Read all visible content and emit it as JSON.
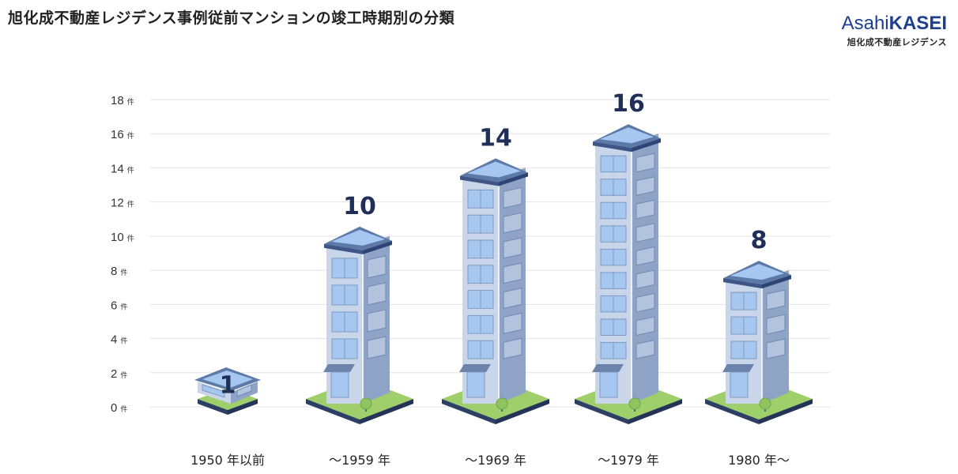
{
  "title": "旭化成不動産レジデンス事例従前マンションの竣工時期別の分類",
  "logo": {
    "brand_asahi": "Asahi",
    "brand_kasei": "KASEI",
    "subtitle": "旭化成不動産レジデンス"
  },
  "colors": {
    "grid": "#e3e3e3",
    "ground": "#9fcf6a",
    "ground_side": "#2e3f66",
    "building_front": "#c9d6ea",
    "building_side": "#8fa3c6",
    "window": "#a6c7ef",
    "roof": "#5d79a8",
    "value_text": "#1f2f57"
  },
  "chart_data": {
    "type": "bar",
    "title": "旭化成不動産レジデンス事例従前マンションの竣工時期別の分類",
    "categories": [
      "1950 年以前",
      "～1959 年",
      "～1969 年",
      "～1979 年",
      "1980 年～"
    ],
    "values": [
      1,
      10,
      14,
      16,
      8
    ],
    "ylim": [
      0,
      18
    ],
    "yticks": [
      0,
      2,
      4,
      6,
      8,
      10,
      12,
      14,
      16,
      18
    ],
    "y_unit": "件",
    "grid": true,
    "bar_style": "isometric building illustrations"
  }
}
